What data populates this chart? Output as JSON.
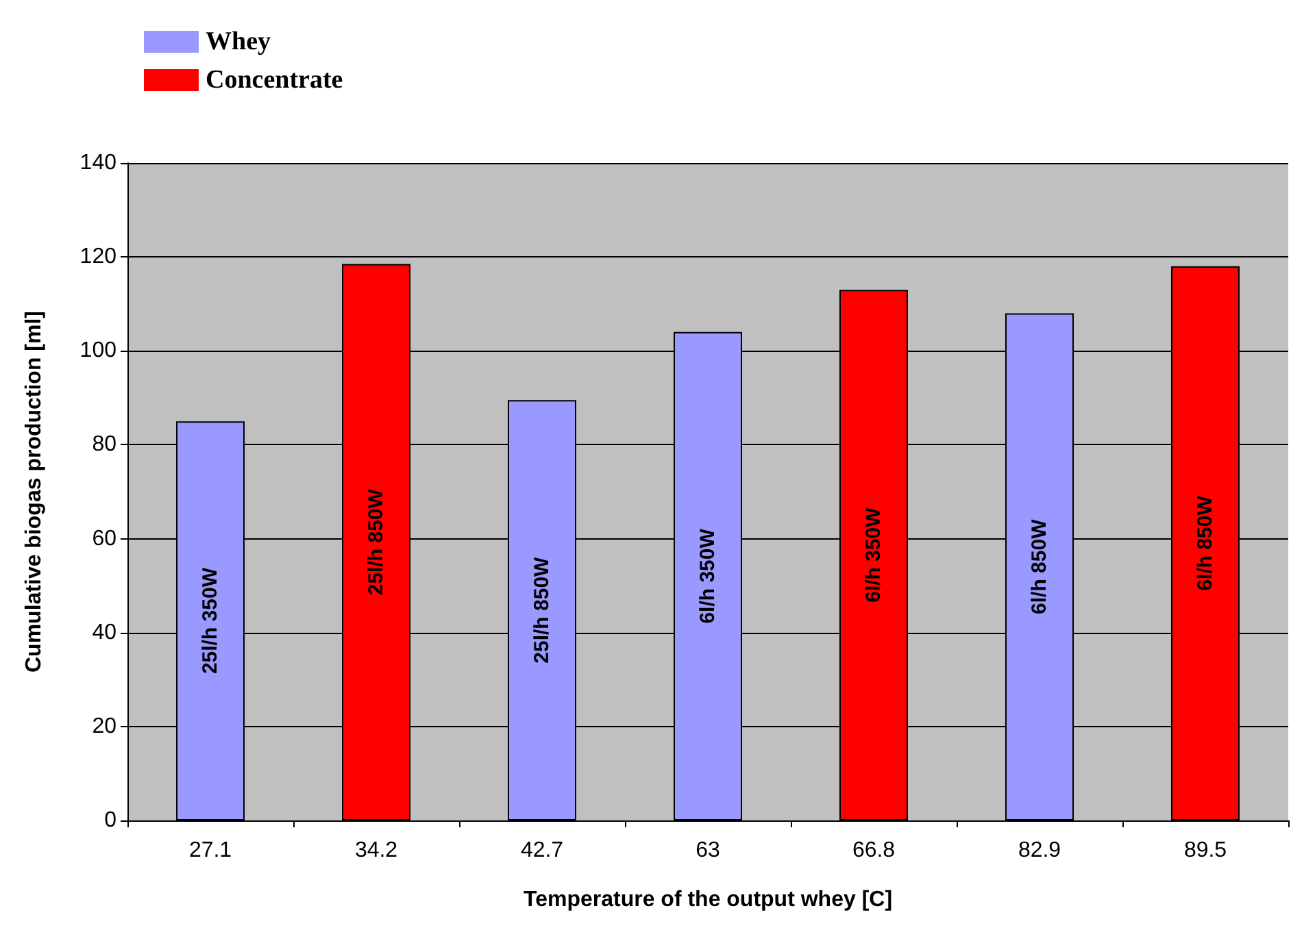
{
  "chart_data": {
    "type": "bar",
    "xlabel": "Temperature of the output whey [C]",
    "ylabel": "Cumulative biogas production [ml]",
    "categories": [
      "27.1",
      "34.2",
      "42.7",
      "63",
      "66.8",
      "82.9",
      "89.5"
    ],
    "series": [
      {
        "name": "Whey",
        "color": "#9999ff",
        "values": [
          85,
          null,
          89.5,
          104,
          null,
          108,
          null
        ]
      },
      {
        "name": "Concentrate",
        "color": "#ff0000",
        "values": [
          null,
          118.5,
          null,
          null,
          113,
          null,
          118
        ]
      }
    ],
    "ylim": [
      0,
      140
    ],
    "yticks": [
      0,
      20,
      40,
      60,
      80,
      100,
      120,
      140
    ],
    "grid": "y",
    "legend": "top left",
    "annotations": [
      "25l/h 350W",
      "25l/h 850W",
      "25l/h 850W",
      "6l/h 350W",
      "6l/h 350W",
      "6l/h 850W",
      "6l/h 850W"
    ]
  }
}
